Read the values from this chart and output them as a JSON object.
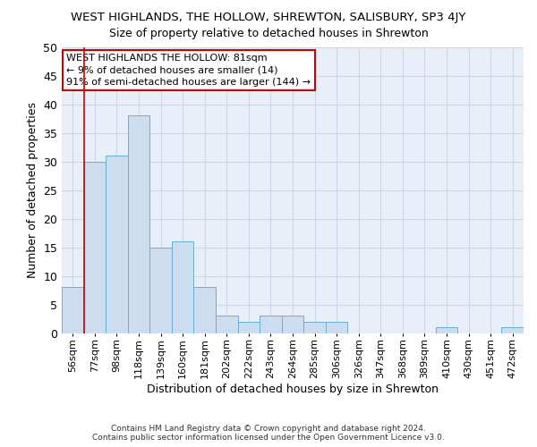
{
  "title": "WEST HIGHLANDS, THE HOLLOW, SHREWTON, SALISBURY, SP3 4JY",
  "subtitle": "Size of property relative to detached houses in Shrewton",
  "xlabel": "Distribution of detached houses by size in Shrewton",
  "ylabel": "Number of detached properties",
  "footer_line1": "Contains HM Land Registry data © Crown copyright and database right 2024.",
  "footer_line2": "Contains public sector information licensed under the Open Government Licence v3.0.",
  "categories": [
    "56sqm",
    "77sqm",
    "98sqm",
    "118sqm",
    "139sqm",
    "160sqm",
    "181sqm",
    "202sqm",
    "222sqm",
    "243sqm",
    "264sqm",
    "285sqm",
    "306sqm",
    "326sqm",
    "347sqm",
    "368sqm",
    "389sqm",
    "410sqm",
    "430sqm",
    "451sqm",
    "472sqm"
  ],
  "values": [
    8,
    30,
    31,
    38,
    15,
    16,
    8,
    3,
    2,
    3,
    3,
    2,
    2,
    0,
    0,
    0,
    0,
    1,
    0,
    0,
    1
  ],
  "bar_color": "#ccddf0",
  "bar_edge_color": "#6baed6",
  "ylim": [
    0,
    50
  ],
  "yticks": [
    0,
    5,
    10,
    15,
    20,
    25,
    30,
    35,
    40,
    45,
    50
  ],
  "property_size": "81sqm",
  "property_name": "WEST HIGHLANDS THE HOLLOW",
  "pct_smaller": 9,
  "n_smaller": 14,
  "pct_larger_semi": 91,
  "n_larger_semi": 144,
  "vline_x_index": 1,
  "annotation_box_color": "#ffffff",
  "annotation_border_color": "#cc0000",
  "grid_color": "#c8d8ea",
  "background_color": "#e8eff8"
}
